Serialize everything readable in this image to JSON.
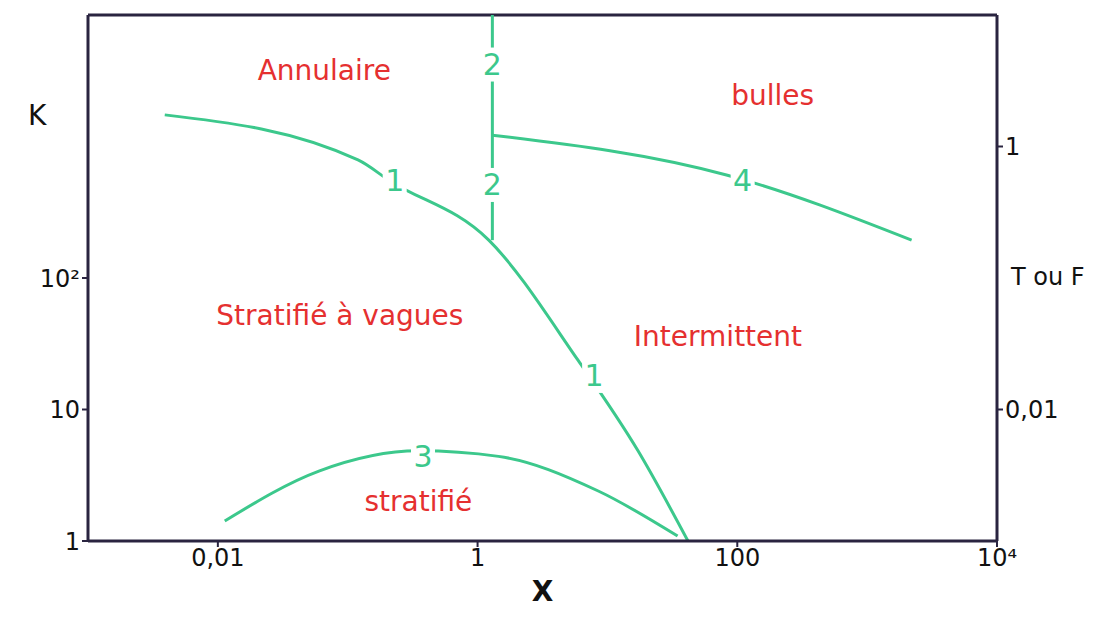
{
  "chart_data": {
    "type": "line",
    "x_label": "X",
    "y_label": "K",
    "y2_label": "T ou F",
    "log": true,
    "grid": false,
    "xlim": [
      0.001,
      10000
    ],
    "xticks": [
      {
        "value": 0.01,
        "label": "0,01"
      },
      1,
      100,
      {
        "value": 10000,
        "label": "10⁴"
      }
    ],
    "ylim": [
      1,
      10000
    ],
    "yticks": [
      1,
      10,
      {
        "value": 100,
        "label": "10²"
      }
    ],
    "y2lim": [
      0.001,
      10
    ],
    "y2ticks": [
      {
        "value": 0.01,
        "label": "0,01"
      },
      1
    ],
    "series": [
      {
        "name": "1",
        "color": "#3cc88c",
        "x": [
          0.0039,
          0.12,
          0.21,
          1.22,
          5.97,
          17.2,
          41.7
        ],
        "values": [
          1740,
          790,
          550,
          194,
          23.5,
          4.85,
          1
        ],
        "label_points": [
          {
            "x": 0.23,
            "y": 550
          },
          {
            "x": 7.9,
            "y": 18
          }
        ]
      },
      {
        "name": "2",
        "color": "#3cc88c",
        "x": [
          1.3,
          1.3
        ],
        "values": [
          194,
          10000
        ],
        "label_points": [
          {
            "x": 1.3,
            "y": 4200
          },
          {
            "x": 1.3,
            "y": 510
          }
        ]
      },
      {
        "name": "3",
        "color": "#3cc88c",
        "x": [
          0.0113,
          0.06,
          0.35,
          1.45,
          8.5,
          34.7
        ],
        "values": [
          1.42,
          3.4,
          4.85,
          4.4,
          2.4,
          1.09
        ],
        "label_points": [
          {
            "x": 0.38,
            "y": 4.4
          }
        ]
      },
      {
        "name": "4",
        "color": "#3cc88c",
        "axis": "y2",
        "x": [
          1.3,
          84,
          2200
        ],
        "values": [
          1.22,
          0.605,
          0.194
        ],
        "label_points": [
          {
            "x": 110,
            "y": 0.55
          }
        ]
      }
    ],
    "annotations": [
      {
        "text": "Annulaire",
        "x": 0.066,
        "y": 3800,
        "color": "#e53030"
      },
      {
        "text": "bulles",
        "x": 187,
        "y": 2450,
        "color": "#e53030"
      },
      {
        "text": "Stratifié à vagues",
        "x": 0.087,
        "y": 52,
        "color": "#e53030"
      },
      {
        "text": "Intermittent",
        "x": 71,
        "y": 36,
        "color": "#e53030"
      },
      {
        "text": "stratifié",
        "x": 0.35,
        "y": 2.0,
        "color": "#e53030"
      }
    ]
  }
}
